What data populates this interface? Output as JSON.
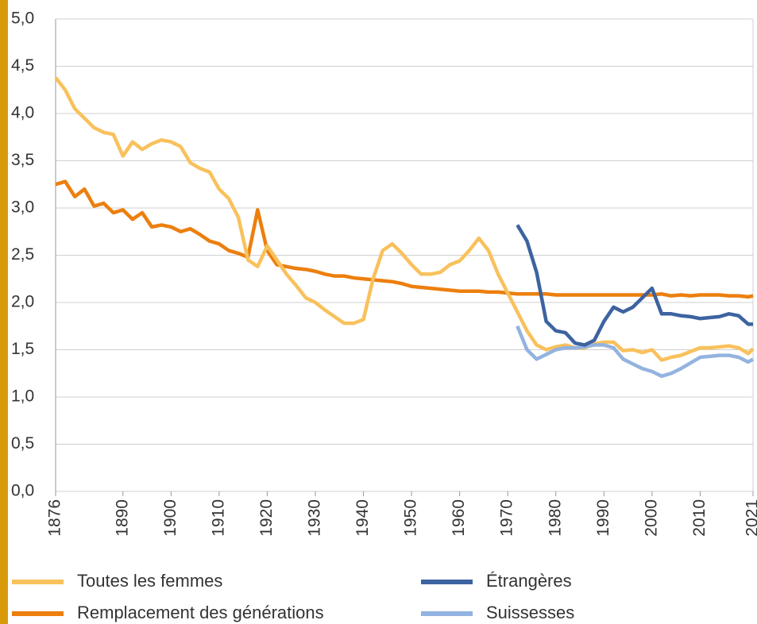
{
  "chart_data": {
    "type": "line",
    "x": [
      1876,
      1878,
      1880,
      1882,
      1884,
      1886,
      1888,
      1890,
      1892,
      1894,
      1896,
      1898,
      1900,
      1902,
      1904,
      1906,
      1908,
      1910,
      1912,
      1914,
      1916,
      1918,
      1920,
      1922,
      1924,
      1926,
      1928,
      1930,
      1932,
      1934,
      1936,
      1938,
      1940,
      1942,
      1944,
      1946,
      1948,
      1950,
      1952,
      1954,
      1956,
      1958,
      1960,
      1962,
      1964,
      1966,
      1968,
      1970,
      1972,
      1974,
      1976,
      1978,
      1980,
      1982,
      1984,
      1986,
      1988,
      1990,
      1992,
      1994,
      1996,
      1998,
      2000,
      2002,
      2004,
      2006,
      2008,
      2010,
      2012,
      2014,
      2016,
      2018,
      2020,
      2021
    ],
    "series": [
      {
        "name": "Toutes les femmes",
        "color": "#f9c15c",
        "values": [
          4.38,
          4.25,
          4.05,
          3.95,
          3.85,
          3.8,
          3.78,
          3.55,
          3.7,
          3.62,
          3.68,
          3.72,
          3.7,
          3.65,
          3.48,
          3.42,
          3.38,
          3.2,
          3.1,
          2.9,
          2.45,
          2.38,
          2.6,
          2.45,
          2.3,
          2.18,
          2.05,
          2.0,
          1.92,
          1.85,
          1.78,
          1.78,
          1.82,
          2.25,
          2.55,
          2.62,
          2.52,
          2.4,
          2.3,
          2.3,
          2.32,
          2.4,
          2.44,
          2.55,
          2.68,
          2.55,
          2.3,
          2.1,
          1.9,
          1.7,
          1.55,
          1.5,
          1.53,
          1.55,
          1.52,
          1.52,
          1.56,
          1.58,
          1.58,
          1.49,
          1.5,
          1.47,
          1.5,
          1.39,
          1.42,
          1.44,
          1.48,
          1.52,
          1.52,
          1.53,
          1.54,
          1.52,
          1.46,
          1.51
        ]
      },
      {
        "name": "Remplacement des générations",
        "color": "#ec7f0e",
        "values": [
          3.25,
          3.28,
          3.12,
          3.2,
          3.02,
          3.05,
          2.95,
          2.98,
          2.88,
          2.95,
          2.8,
          2.82,
          2.8,
          2.75,
          2.78,
          2.72,
          2.65,
          2.62,
          2.55,
          2.52,
          2.48,
          2.98,
          2.55,
          2.4,
          2.38,
          2.36,
          2.35,
          2.33,
          2.3,
          2.28,
          2.28,
          2.26,
          2.25,
          2.24,
          2.23,
          2.22,
          2.2,
          2.17,
          2.16,
          2.15,
          2.14,
          2.13,
          2.12,
          2.12,
          2.12,
          2.11,
          2.11,
          2.1,
          2.09,
          2.09,
          2.09,
          2.09,
          2.08,
          2.08,
          2.08,
          2.08,
          2.08,
          2.08,
          2.08,
          2.08,
          2.08,
          2.08,
          2.08,
          2.09,
          2.07,
          2.08,
          2.07,
          2.08,
          2.08,
          2.08,
          2.07,
          2.07,
          2.06,
          2.07
        ]
      },
      {
        "name": "Étrangères",
        "color": "#3d63a0",
        "values": [
          null,
          null,
          null,
          null,
          null,
          null,
          null,
          null,
          null,
          null,
          null,
          null,
          null,
          null,
          null,
          null,
          null,
          null,
          null,
          null,
          null,
          null,
          null,
          null,
          null,
          null,
          null,
          null,
          null,
          null,
          null,
          null,
          null,
          null,
          null,
          null,
          null,
          null,
          null,
          null,
          null,
          null,
          null,
          null,
          null,
          null,
          null,
          null,
          2.82,
          2.65,
          2.32,
          1.8,
          1.7,
          1.68,
          1.57,
          1.55,
          1.6,
          1.8,
          1.95,
          1.9,
          1.95,
          2.05,
          2.15,
          1.88,
          1.88,
          1.86,
          1.85,
          1.83,
          1.84,
          1.85,
          1.88,
          1.86,
          1.77,
          1.77
        ]
      },
      {
        "name": "Suissesses",
        "color": "#93b3e0",
        "values": [
          null,
          null,
          null,
          null,
          null,
          null,
          null,
          null,
          null,
          null,
          null,
          null,
          null,
          null,
          null,
          null,
          null,
          null,
          null,
          null,
          null,
          null,
          null,
          null,
          null,
          null,
          null,
          null,
          null,
          null,
          null,
          null,
          null,
          null,
          null,
          null,
          null,
          null,
          null,
          null,
          null,
          null,
          null,
          null,
          null,
          null,
          null,
          null,
          1.75,
          1.5,
          1.4,
          1.45,
          1.5,
          1.52,
          1.52,
          1.53,
          1.55,
          1.55,
          1.52,
          1.4,
          1.35,
          1.3,
          1.27,
          1.22,
          1.25,
          1.3,
          1.36,
          1.42,
          1.43,
          1.44,
          1.44,
          1.42,
          1.37,
          1.4
        ]
      }
    ],
    "xlim": [
      1876,
      2021
    ],
    "xticks": [
      1876,
      1890,
      1900,
      1910,
      1920,
      1930,
      1940,
      1950,
      1960,
      1970,
      1980,
      1990,
      2000,
      2010,
      2021
    ],
    "ylim": [
      0,
      5
    ],
    "yticks": [
      {
        "value": 0,
        "label": "0,0"
      },
      {
        "value": 0.5,
        "label": "0,5"
      },
      {
        "value": 1,
        "label": "1,0"
      },
      {
        "value": 1.5,
        "label": "1,5"
      },
      {
        "value": 2,
        "label": "2,0"
      },
      {
        "value": 2.5,
        "label": "2,5"
      },
      {
        "value": 3,
        "label": "3,0"
      },
      {
        "value": 3.5,
        "label": "3,5"
      },
      {
        "value": 4,
        "label": "4,0"
      },
      {
        "value": 4.5,
        "label": "4,5"
      },
      {
        "value": 5,
        "label": "5,0"
      }
    ],
    "grid": true
  }
}
